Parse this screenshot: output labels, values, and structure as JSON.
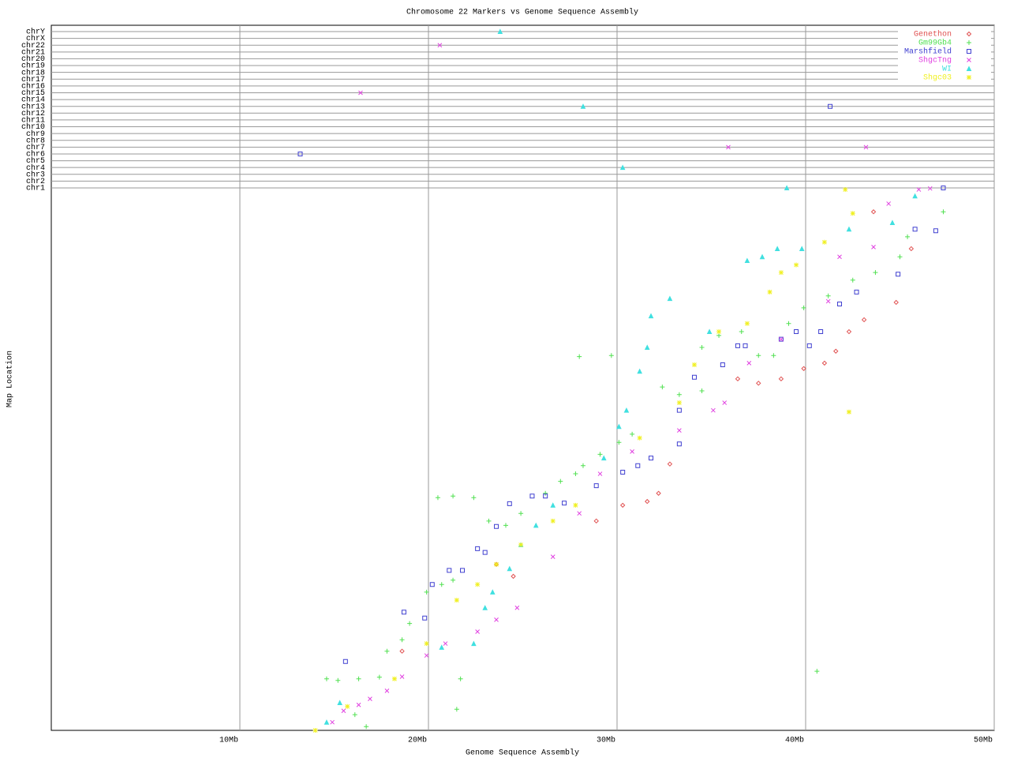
{
  "chart_data": {
    "type": "scatter",
    "title": "Chromosome 22 Markers vs Genome Sequence Assembly",
    "x_label": "Genome Sequence Assembly",
    "y_label": "Map Location",
    "xlim": [
      0,
      50
    ],
    "xticks": [
      {
        "value": 10,
        "label": "10Mb"
      },
      {
        "value": 20,
        "label": "20Mb"
      },
      {
        "value": 30,
        "label": "30Mb"
      },
      {
        "value": 40,
        "label": "40Mb"
      },
      {
        "value": 50,
        "label": "50Mb"
      }
    ],
    "ylim": [
      0,
      100
    ],
    "grid": true,
    "legend": "top-right",
    "chromosomes": [
      "chr1",
      "chr2",
      "chr3",
      "chr4",
      "chr5",
      "chr6",
      "chr7",
      "chr8",
      "chr9",
      "chr10",
      "chr11",
      "chr12",
      "chr13",
      "chr14",
      "chr15",
      "chr16",
      "chr17",
      "chr18",
      "chr19",
      "chr20",
      "chr21",
      "chr22",
      "chrX",
      "chrY"
    ],
    "series": [
      {
        "name": "Genethon",
        "color": "#e05050",
        "marker": "diamond",
        "x": [
          18.6,
          23.6,
          24.5,
          28.9,
          30.3,
          31.6,
          32.2,
          32.8,
          36.4,
          37.5,
          38.7,
          39.9,
          41.0,
          41.6,
          42.3,
          43.1,
          44.8,
          45.6,
          43.6
        ],
        "y": [
          14.6,
          30.6,
          28.4,
          38.6,
          41.5,
          42.2,
          43.7,
          49.1,
          64.8,
          64.0,
          64.8,
          66.7,
          67.7,
          69.9,
          73.5,
          75.7,
          78.9,
          88.8,
          95.6
        ],
        "off_x": [],
        "off_chr": []
      },
      {
        "name": "Gm99Gb4",
        "color": "#50e050",
        "marker": "plus",
        "x": [
          14.6,
          15.2,
          16.3,
          17.4,
          17.8,
          18.6,
          19.0,
          19.9,
          20.7,
          21.3,
          20.5,
          21.3,
          22.4,
          23.2,
          24.1,
          24.9,
          26.2,
          27.0,
          27.8,
          28.2,
          28.0,
          29.7,
          29.1,
          30.1,
          30.8,
          32.4,
          33.3,
          34.5,
          34.5,
          35.4,
          36.6,
          37.5,
          38.3,
          39.1,
          39.9,
          41.2,
          42.5,
          43.7,
          45.4,
          47.3,
          40.6,
          21.5,
          16.7,
          16.1,
          21.7,
          45.0
        ],
        "y": [
          9.5,
          9.2,
          9.5,
          9.8,
          14.6,
          16.7,
          19.7,
          25.5,
          26.9,
          27.7,
          42.9,
          43.2,
          42.9,
          38.6,
          37.8,
          40.0,
          43.7,
          45.9,
          47.3,
          48.8,
          68.9,
          69.1,
          50.9,
          53.1,
          54.6,
          63.3,
          61.9,
          62.6,
          70.6,
          72.8,
          73.5,
          69.1,
          69.1,
          75.0,
          77.9,
          80.1,
          83.0,
          84.4,
          91.0,
          95.6,
          10.9,
          3.9,
          0.7,
          2.9,
          9.5,
          87.3
        ],
        "off_x": [],
        "off_chr": []
      },
      {
        "name": "Marshfield",
        "color": "#4040d0",
        "marker": "square",
        "x": [
          15.6,
          18.7,
          19.8,
          20.2,
          21.1,
          21.8,
          22.6,
          23.0,
          23.6,
          24.3,
          25.5,
          26.2,
          27.2,
          28.9,
          30.3,
          31.1,
          31.8,
          33.3,
          33.3,
          34.1,
          35.6,
          36.4,
          36.8,
          38.7,
          39.5,
          40.2,
          40.8,
          41.8,
          42.7,
          44.9,
          45.8,
          46.9
        ],
        "y": [
          12.7,
          21.8,
          20.7,
          26.9,
          29.5,
          29.5,
          33.5,
          32.8,
          37.6,
          41.8,
          43.2,
          43.2,
          41.9,
          45.1,
          47.6,
          48.8,
          50.2,
          52.8,
          59.0,
          65.1,
          67.4,
          70.9,
          70.9,
          72.1,
          73.5,
          70.9,
          73.5,
          78.6,
          80.8,
          84.1,
          92.4,
          92.1
        ],
        "off_x": [
          13.2,
          41.3,
          47.3
        ],
        "off_chr": [
          "chr6",
          "chr13",
          "chr1"
        ]
      },
      {
        "name": "ShgcTng",
        "color": "#e040e0",
        "marker": "cross",
        "x": [
          14.9,
          15.5,
          16.3,
          16.9,
          17.8,
          18.6,
          19.9,
          20.9,
          22.6,
          23.6,
          24.7,
          26.6,
          28.0,
          29.1,
          30.8,
          33.3,
          35.1,
          35.7,
          37.0,
          38.7,
          41.2,
          41.8,
          43.6,
          44.4,
          46.0,
          46.6
        ],
        "y": [
          1.5,
          3.6,
          4.7,
          5.8,
          7.3,
          9.9,
          13.8,
          16.0,
          18.2,
          20.4,
          22.6,
          32.0,
          40.0,
          47.3,
          51.4,
          55.3,
          59.0,
          60.4,
          67.7,
          72.1,
          79.1,
          87.3,
          89.1,
          97.1,
          99.7,
          99.9
        ],
        "off_x": [
          20.6,
          16.4,
          35.9,
          43.2
        ],
        "off_chr": [
          "chr22",
          "chr15",
          "chr7",
          "chr7"
        ]
      },
      {
        "name": "WI",
        "color": "#40e0e0",
        "marker": "triangle",
        "x": [
          14.6,
          15.3,
          20.7,
          22.4,
          23.0,
          23.4,
          24.3,
          24.9,
          25.7,
          26.6,
          29.3,
          30.1,
          30.5,
          31.2,
          31.6,
          31.8,
          32.8,
          34.9,
          36.9,
          37.7,
          38.5,
          39.8,
          42.3,
          44.6,
          45.8
        ],
        "y": [
          1.5,
          5.1,
          15.3,
          16.0,
          22.6,
          25.5,
          29.8,
          34.2,
          37.8,
          41.5,
          50.2,
          56.0,
          59.0,
          66.2,
          70.6,
          76.4,
          79.6,
          73.5,
          86.6,
          87.3,
          88.8,
          88.8,
          92.4,
          93.6,
          98.5
        ],
        "off_x": [
          23.8,
          28.2,
          30.3,
          39.0
        ],
        "off_chr": [
          "chrY",
          "chr13",
          "chr4",
          "chr1"
        ]
      },
      {
        "name": "Shgc03",
        "color": "#f0f020",
        "marker": "star",
        "x": [
          14.0,
          15.7,
          18.2,
          19.9,
          21.5,
          22.6,
          23.6,
          24.9,
          26.6,
          27.8,
          31.2,
          33.3,
          34.1,
          35.4,
          36.9,
          38.1,
          38.7,
          39.5,
          41.0,
          42.1,
          42.5,
          42.3
        ],
        "y": [
          0,
          4.4,
          9.5,
          16.0,
          24.0,
          26.9,
          30.6,
          34.2,
          38.6,
          41.5,
          53.9,
          60.4,
          67.4,
          73.5,
          75.0,
          80.8,
          84.4,
          85.8,
          90.0,
          99.7,
          95.3,
          58.7
        ],
        "off_x": [],
        "off_chr": []
      }
    ]
  }
}
